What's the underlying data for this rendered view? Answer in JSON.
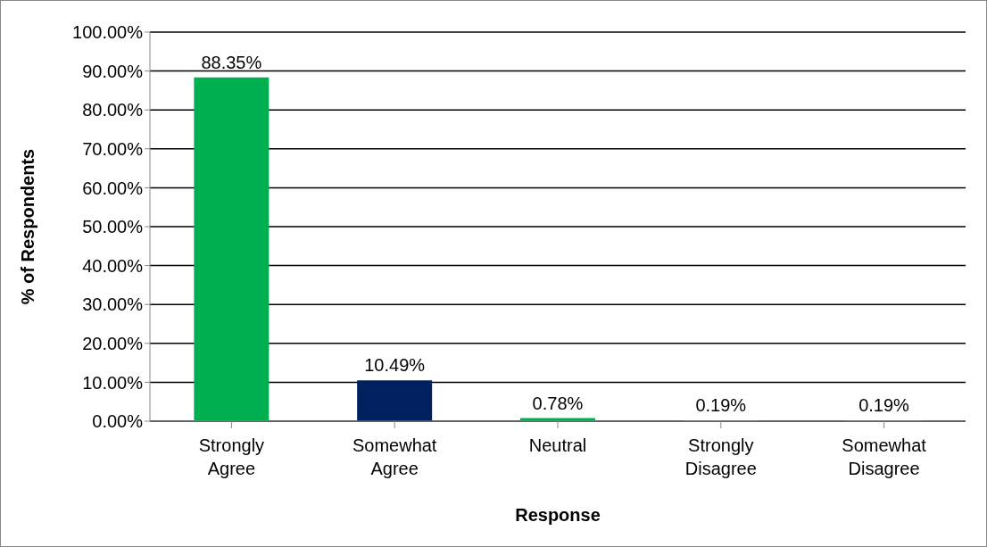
{
  "chart_data": {
    "type": "bar",
    "xlabel": "Response",
    "ylabel": "% of Respondents",
    "categories": [
      "Strongly Agree",
      "Somewhat Agree",
      "Neutral",
      "Strongly Disagree",
      "Somewhat Disagree"
    ],
    "values": [
      88.35,
      10.49,
      0.78,
      0.19,
      0.19
    ],
    "colors": [
      "#00b050",
      "#002060",
      "#00b050",
      "#00b050",
      "#00b050"
    ],
    "value_labels": [
      "88.35%",
      "10.49%",
      "0.78%",
      "0.19%",
      "0.19%"
    ],
    "ylim": [
      0,
      100
    ],
    "yticks": [
      {
        "value": 0,
        "label": "0.00%"
      },
      {
        "value": 10,
        "label": "10.00%"
      },
      {
        "value": 20,
        "label": "20.00%"
      },
      {
        "value": 30,
        "label": "30.00%"
      },
      {
        "value": 40,
        "label": "40.00%"
      },
      {
        "value": 50,
        "label": "50.00%"
      },
      {
        "value": 60,
        "label": "60.00%"
      },
      {
        "value": 70,
        "label": "70.00%"
      },
      {
        "value": 80,
        "label": "80.00%"
      },
      {
        "value": 90,
        "label": "90.00%"
      },
      {
        "value": 100,
        "label": "100.00%"
      }
    ],
    "grid": "y",
    "legend": false
  }
}
